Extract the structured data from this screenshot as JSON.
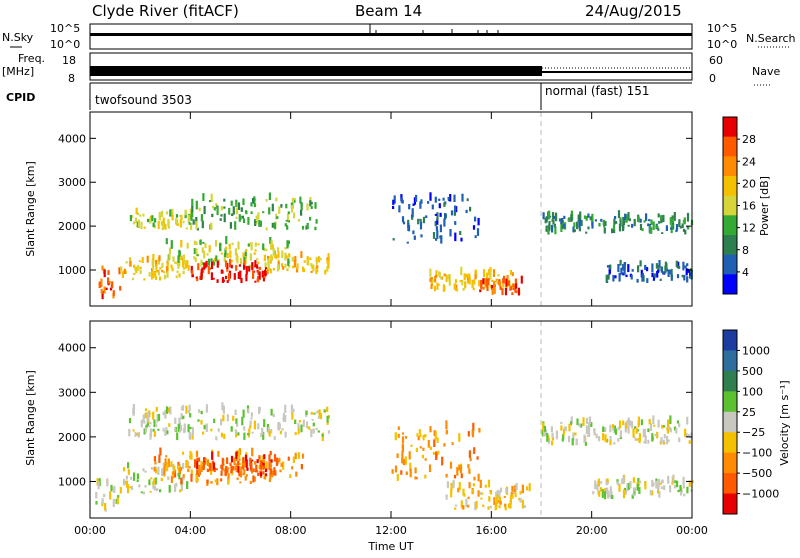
{
  "header": {
    "title": "Clyde River (fitACF)",
    "beam": "Beam 14",
    "date": "24/Aug/2015"
  },
  "panel_labels": {
    "nsky": "N.Sky",
    "nsearch": "N.Search",
    "freq": "Freq.",
    "mhz": "[MHz]",
    "nave": "Nave",
    "cpid": "CPID",
    "nsky_ticks": [
      "10^5",
      "10^0"
    ],
    "nsearch_ticks": [
      "10^5",
      "10^0"
    ],
    "freq_ticks": [
      "18",
      "8"
    ],
    "nave_ticks": [
      "60",
      "0"
    ]
  },
  "cpid_modes": [
    {
      "label": "twofsound 3503",
      "start_hour": 0,
      "end_hour": 18
    },
    {
      "label": "normal (fast) 151",
      "start_hour": 18,
      "end_hour": 24
    }
  ],
  "colors": {
    "power": [
      "#0000ff",
      "#1f5fb4",
      "#2e7f4e",
      "#33aa33",
      "#d6d63a",
      "#f5c000",
      "#ff8c00",
      "#ff5a00",
      "#e80000"
    ],
    "velocity": [
      "#1c3ca0",
      "#2d6e9e",
      "#2e7e4e",
      "#5cc12f",
      "#c8c8c0",
      "#f5c000",
      "#ff8c00",
      "#ff5a00",
      "#e80000"
    ]
  },
  "chart_data": [
    {
      "type": "heatmap",
      "name": "Power",
      "ylabel": "Slant Range [km]",
      "xlabel": "Time UT",
      "xticks": [
        "00:00",
        "04:00",
        "08:00",
        "12:00",
        "16:00",
        "20:00",
        "00:00"
      ],
      "yticks": [
        "1000",
        "2000",
        "3000",
        "4000"
      ],
      "colorbar_label": "Power [dB]",
      "colorbar_ticks": [
        "4",
        "8",
        "12",
        "16",
        "20",
        "24",
        "28"
      ],
      "xlim_hours": [
        0,
        24
      ],
      "ylim_km": [
        180,
        4600
      ],
      "bands": [
        {
          "t0": 0.3,
          "t1": 1.2,
          "r0": 300,
          "r1": 1000,
          "level": 7
        },
        {
          "t0": 1.2,
          "t1": 4.0,
          "r0": 750,
          "r1": 1200,
          "level": 5
        },
        {
          "t0": 3.0,
          "t1": 8.0,
          "r0": 1050,
          "r1": 1600,
          "level": 4
        },
        {
          "t0": 4.0,
          "t1": 7.0,
          "r0": 700,
          "r1": 1100,
          "level": 8
        },
        {
          "t0": 7.0,
          "t1": 9.5,
          "r0": 900,
          "r1": 1300,
          "level": 5
        },
        {
          "t0": 1.5,
          "t1": 4.0,
          "r0": 1900,
          "r1": 2300,
          "level": 4
        },
        {
          "t0": 4.0,
          "t1": 9.0,
          "r0": 1900,
          "r1": 2600,
          "level": 3
        },
        {
          "t0": 12.0,
          "t1": 15.5,
          "r0": 1600,
          "r1": 2600,
          "level": 1
        },
        {
          "t0": 13.5,
          "t1": 17.0,
          "r0": 500,
          "r1": 900,
          "level": 5
        },
        {
          "t0": 15.5,
          "t1": 17.2,
          "r0": 400,
          "r1": 700,
          "level": 7
        },
        {
          "t0": 18.0,
          "t1": 24.0,
          "r0": 1800,
          "r1": 2200,
          "level": 2
        },
        {
          "t0": 20.5,
          "t1": 24.0,
          "r0": 700,
          "r1": 1100,
          "level": 1
        }
      ]
    },
    {
      "type": "heatmap",
      "name": "Velocity",
      "ylabel": "Slant Range [km]",
      "xlabel": "Time UT",
      "xticks": [
        "00:00",
        "04:00",
        "08:00",
        "12:00",
        "16:00",
        "20:00",
        "00:00"
      ],
      "yticks": [
        "1000",
        "2000",
        "3000",
        "4000"
      ],
      "colorbar_label": "Velocity [m s⁻¹]",
      "colorbar_ticks": [
        "1000",
        "500",
        "100",
        "25",
        "−25",
        "−100",
        "−500",
        "−1000"
      ],
      "xlim_hours": [
        0,
        24
      ],
      "ylim_km": [
        180,
        4600
      ],
      "bands": [
        {
          "t0": 0.2,
          "t1": 1.2,
          "r0": 300,
          "r1": 1000,
          "level": 4
        },
        {
          "t0": 1.3,
          "t1": 4.0,
          "r0": 700,
          "r1": 1300,
          "level": 4
        },
        {
          "t0": 2.5,
          "t1": 8.5,
          "r0": 900,
          "r1": 1600,
          "level": 6
        },
        {
          "t0": 4.0,
          "t1": 7.5,
          "r0": 1100,
          "r1": 1500,
          "level": 7
        },
        {
          "t0": 1.5,
          "t1": 9.5,
          "r0": 1900,
          "r1": 2600,
          "level": 4
        },
        {
          "t0": 12.0,
          "t1": 15.5,
          "r0": 1000,
          "r1": 2200,
          "level": 6
        },
        {
          "t0": 14.0,
          "t1": 17.5,
          "r0": 350,
          "r1": 900,
          "level": 5
        },
        {
          "t0": 18.0,
          "t1": 24.0,
          "r0": 1800,
          "r1": 2300,
          "level": 4
        },
        {
          "t0": 20.0,
          "t1": 24.0,
          "r0": 600,
          "r1": 1000,
          "level": 4
        }
      ]
    }
  ]
}
